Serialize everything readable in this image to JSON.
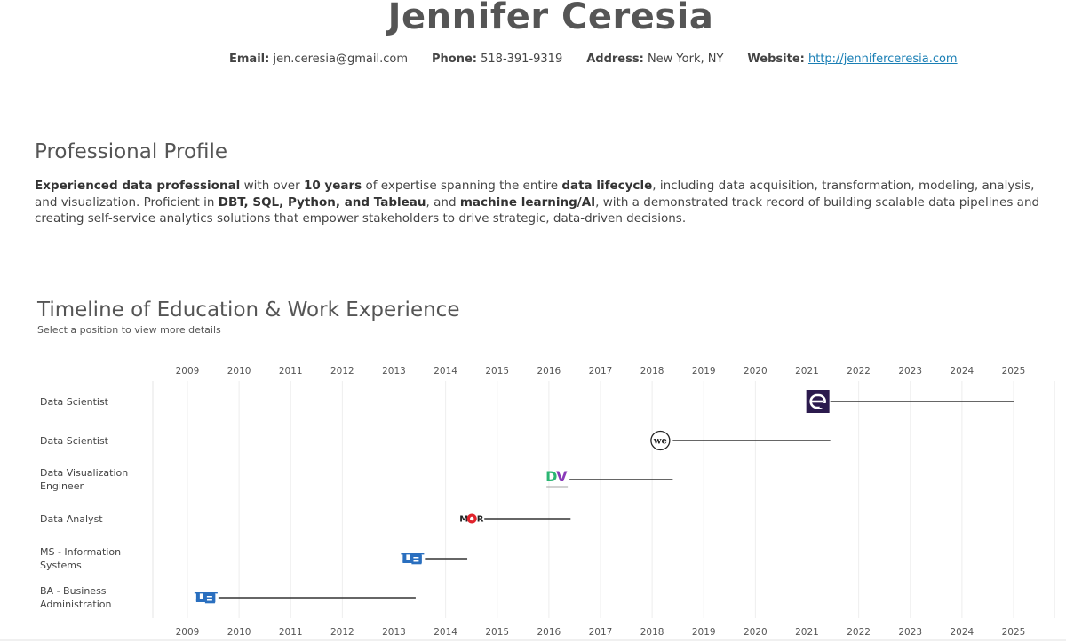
{
  "header": {
    "name": "Jennifer Ceresia",
    "contact": [
      {
        "label": "Email:",
        "value": "jen.ceresia@gmail.com"
      },
      {
        "label": "Phone:",
        "value": "518-391-9319"
      },
      {
        "label": "Address:",
        "value": "New York, NY"
      },
      {
        "label": "Website:",
        "value": "http://jenniferceresia.com"
      }
    ]
  },
  "profile": {
    "title": "Professional Profile",
    "segments": [
      {
        "text": "Experienced data professional",
        "bold": true
      },
      {
        "text": " with over ",
        "bold": false
      },
      {
        "text": "10 years",
        "bold": true
      },
      {
        "text": " of expertise spanning the entire ",
        "bold": false
      },
      {
        "text": "data lifecycle",
        "bold": true
      },
      {
        "text": ", including data acquisition, transformation, modeling, analysis, and visualization. Proficient in ",
        "bold": false
      },
      {
        "text": "DBT, SQL, Python, and Tableau",
        "bold": true
      },
      {
        "text": ", and ",
        "bold": false
      },
      {
        "text": "machine learning/AI",
        "bold": true
      },
      {
        "text": ", with a demonstrated track record of building scalable data pipelines and creating self-service analytics solutions that empower stakeholders to drive strategic, data-driven decisions.",
        "bold": false
      }
    ]
  },
  "timeline": {
    "title": "Timeline of Education & Work Experience",
    "subtitle": "Select a position to view more details"
  },
  "chart_data": {
    "type": "bar",
    "orientation": "horizontal-gantt",
    "x_ticks": [
      "2009",
      "2010",
      "2011",
      "2012",
      "2013",
      "2014",
      "2015",
      "2016",
      "2017",
      "2018",
      "2019",
      "2020",
      "2021",
      "2022",
      "2023",
      "2024",
      "2025"
    ],
    "xlim": [
      2009,
      2025
    ],
    "grid": true,
    "rows": [
      {
        "label": "Data Scientist",
        "start": 2021.45,
        "end": 2025.0,
        "logo": "e-logo-icon"
      },
      {
        "label": "Data Scientist",
        "start": 2018.4,
        "end": 2021.45,
        "logo": "we-logo-icon"
      },
      {
        "label": "Data Visualization Engineer",
        "start": 2016.4,
        "end": 2018.4,
        "logo": "dv-logo-icon"
      },
      {
        "label": "Data Analyst",
        "start": 2014.75,
        "end": 2016.42,
        "logo": "mor-logo-icon"
      },
      {
        "label": "MS - Information Systems",
        "start": 2013.6,
        "end": 2014.42,
        "logo": "ub-logo-icon"
      },
      {
        "label": "BA - Business Administration",
        "start": 2009.6,
        "end": 2013.42,
        "logo": "ub-logo-icon"
      }
    ],
    "colors": {
      "bar": "#333333",
      "grid": "#eeeeee",
      "ub_blue": "#2a6fbf",
      "dv_green": "#2bb673",
      "dv_purple": "#8a3ab9",
      "mor_red": "#e0232c",
      "e_purple": "#2b1a4d"
    }
  }
}
